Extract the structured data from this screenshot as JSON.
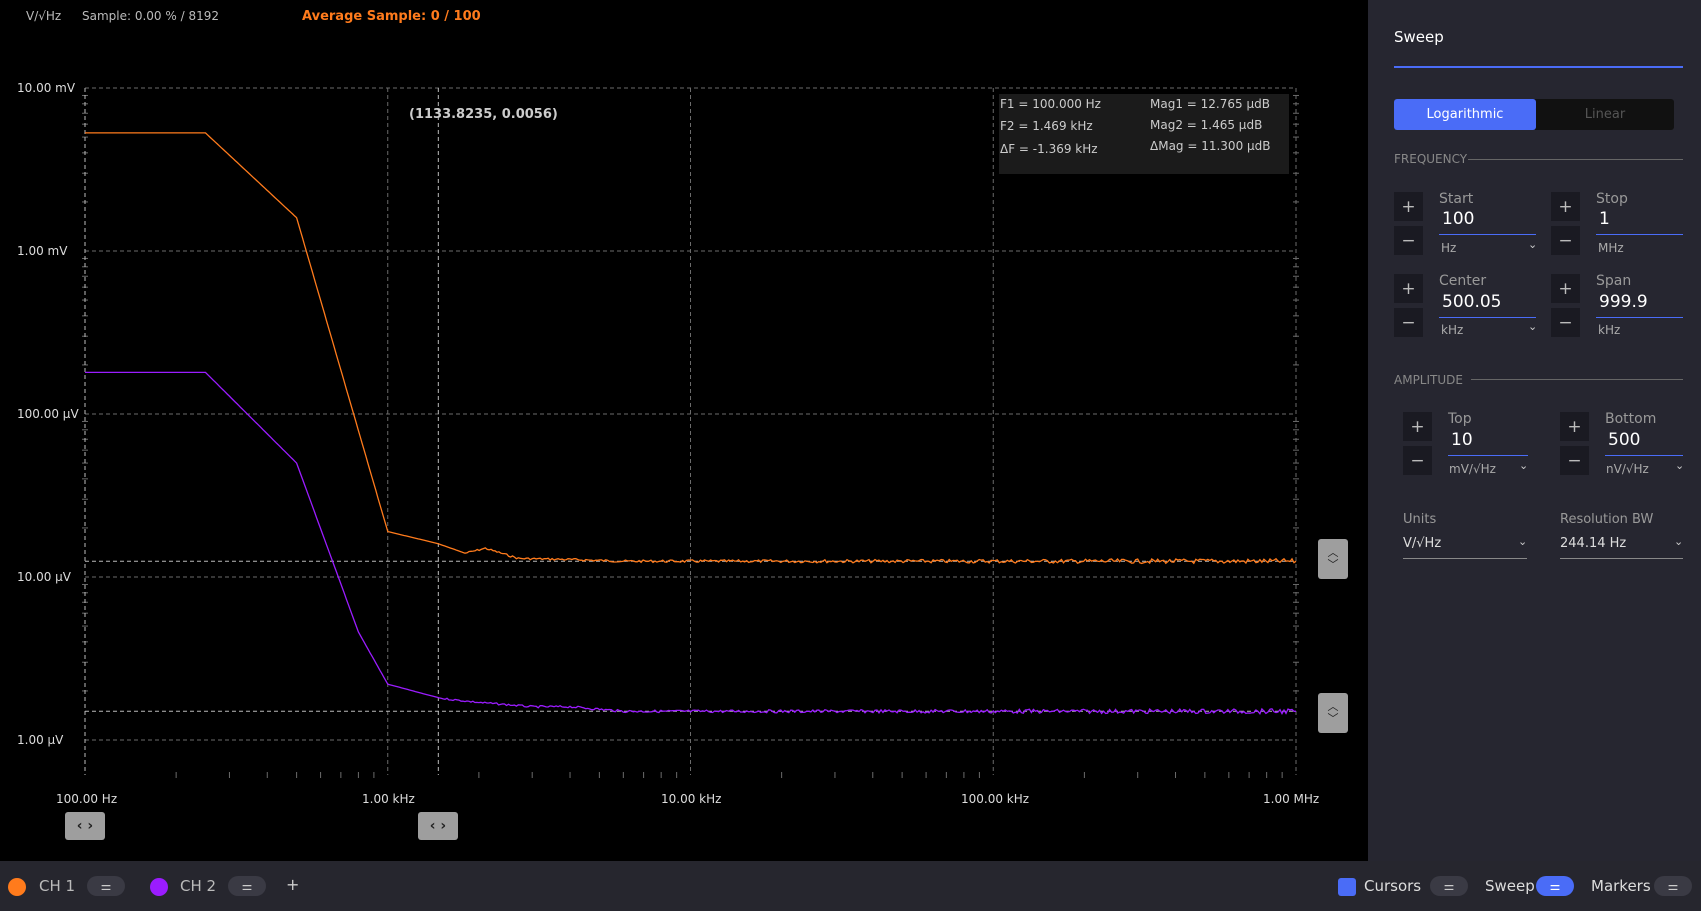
{
  "header": {
    "units_label": "V/√Hz",
    "sample_text": "Sample: 0.00 % / 8192",
    "average_text": "Average Sample: 0 / 100"
  },
  "plot": {
    "y_ticks": [
      "10.00 mV",
      "1.00 mV",
      "100.00 μV",
      "10.00 μV",
      "1.00 μV"
    ],
    "x_ticks": [
      "100.00 Hz",
      "1.00 kHz",
      "10.00 kHz",
      "100.00 kHz",
      "1.00 MHz"
    ],
    "cursor_readout": "(1133.8235, 0.0056)",
    "markers": {
      "f1": "F1 =  100.000 Hz",
      "f2": "F2 =  1.469 kHz",
      "df": "ΔF =  -1.369 kHz",
      "mag1": "Mag1 =  12.765 μdB",
      "mag2": "Mag2 =  1.465 μdB",
      "dmag": "ΔMag =  11.300 μdB"
    },
    "colors": {
      "ch1": "#ff7b1c",
      "ch2": "#9b1cff",
      "grid": "#6b6b6b",
      "background": "#000000"
    },
    "scroll_left_icon": "‹ ›",
    "scroll_right_icon": "‹ ›"
  },
  "chart_data": {
    "type": "line",
    "x_scale": "log",
    "y_scale": "log",
    "xlim": [
      100,
      1000000
    ],
    "ylim": [
      5e-07,
      0.01
    ],
    "x_unit": "Hz",
    "y_unit": "V/√Hz",
    "grid": true,
    "series": [
      {
        "name": "CH 1",
        "color": "#ff7b1c",
        "x": [
          100,
          250,
          500,
          1000,
          1469,
          1800,
          2100,
          2700,
          4000,
          6000,
          10000,
          30000,
          100000,
          300000,
          1000000
        ],
        "y": [
          0.0053,
          0.0053,
          0.0016,
          1.9e-05,
          1.6e-05,
          1.4e-05,
          1.5e-05,
          1.3e-05,
          1.28e-05,
          1.25e-05,
          1.25e-05,
          1.25e-05,
          1.25e-05,
          1.25e-05,
          1.25e-05
        ]
      },
      {
        "name": "CH 2",
        "color": "#9b1cff",
        "x": [
          100,
          250,
          500,
          800,
          1000,
          1500,
          2000,
          3000,
          4000,
          6000,
          10000,
          30000,
          100000,
          300000,
          1000000
        ],
        "y": [
          0.00018,
          0.00018,
          5e-05,
          4.6e-06,
          2.2e-06,
          1.8e-06,
          1.7e-06,
          1.6e-06,
          1.6e-06,
          1.5e-06,
          1.5e-06,
          1.5e-06,
          1.5e-06,
          1.5e-06,
          1.5e-06
        ]
      }
    ],
    "cursors": {
      "x": [
        100,
        1469
      ],
      "y": [
        1.25e-05,
        1.5e-06
      ]
    }
  },
  "sidebar": {
    "title": "Sweep",
    "scale_options": [
      "Logarithmic",
      "Linear"
    ],
    "scale_selected": "Logarithmic",
    "frequency_section": "FREQUENCY",
    "amplitude_section": "AMPLITUDE",
    "start": {
      "label": "Start",
      "value": "100",
      "unit": "Hz"
    },
    "stop": {
      "label": "Stop",
      "value": "1",
      "unit": "MHz"
    },
    "center": {
      "label": "Center",
      "value": "500.05",
      "unit": "kHz"
    },
    "span": {
      "label": "Span",
      "value": "999.9",
      "unit": "kHz"
    },
    "top": {
      "label": "Top",
      "value": "10",
      "unit": "mV/√Hz"
    },
    "bottom": {
      "label": "Bottom",
      "value": "500",
      "unit": "nV/√Hz"
    },
    "units": {
      "label": "Units",
      "value": "V/√Hz"
    },
    "resolution": {
      "label": "Resolution BW",
      "value": "244.14 Hz"
    },
    "plus_glyph": "+",
    "minus_glyph": "−",
    "chevron_glyph": "⌄"
  },
  "bottom_bar": {
    "ch1": "CH 1",
    "ch2": "CH 2",
    "add": "+",
    "cursors": "Cursors",
    "sweep": "Sweep",
    "markers": "Markers",
    "settings_glyph": "⚌"
  }
}
